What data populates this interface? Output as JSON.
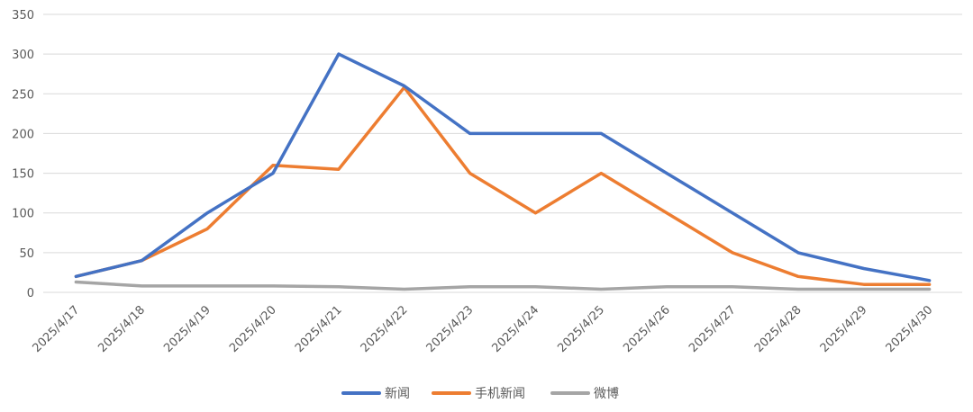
{
  "chart_data": {
    "type": "line",
    "categories": [
      "2025/4/17",
      "2025/4/18",
      "2025/4/19",
      "2025/4/20",
      "2025/4/21",
      "2025/4/22",
      "2025/4/23",
      "2025/4/24",
      "2025/4/25",
      "2025/4/26",
      "2025/4/27",
      "2025/4/28",
      "2025/4/29",
      "2025/4/30"
    ],
    "series": [
      {
        "name": "新闻",
        "color": "#4472c4",
        "values": [
          20,
          40,
          100,
          150,
          300,
          260,
          200,
          200,
          200,
          150,
          100,
          50,
          30,
          15
        ]
      },
      {
        "name": "手机新闻",
        "color": "#ed7d31",
        "values": [
          20,
          40,
          80,
          160,
          155,
          258,
          150,
          100,
          150,
          100,
          50,
          20,
          10,
          10
        ]
      },
      {
        "name": "微博",
        "color": "#a5a5a5",
        "values": [
          13,
          8,
          8,
          8,
          7,
          4,
          7,
          7,
          4,
          7,
          7,
          4,
          4,
          4
        ]
      }
    ],
    "yticks": [
      0,
      50,
      100,
      150,
      200,
      250,
      300,
      350
    ],
    "ylim": [
      0,
      350
    ],
    "grid": true,
    "legend": "bottom",
    "title": "",
    "xlabel": "",
    "ylabel": ""
  }
}
